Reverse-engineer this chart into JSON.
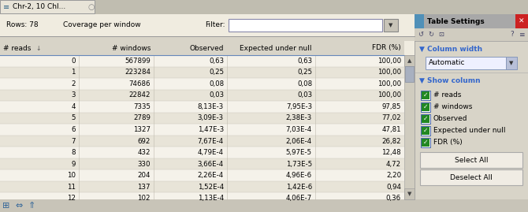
{
  "title_tab": "Chr-2, 10 Chl...",
  "rows_label": "Rows: 78",
  "coverage_label": "Coverage per window",
  "filter_label": "Filter:",
  "panel_title": "Table Settings",
  "column_width_label": "Column width",
  "dropdown_text": "Automatic",
  "show_column_label": "Show column",
  "checkboxes": [
    "# reads",
    "# windows",
    "Observed",
    "Expected under null",
    "FDR (%)"
  ],
  "btn1": "Select All",
  "btn2": "Deselect All",
  "headers": [
    "# reads",
    "# windows",
    "Observed",
    "Expected under null",
    "FDR (%)"
  ],
  "rows": [
    [
      "0",
      "567899",
      "0,63",
      "0,63",
      "100,00"
    ],
    [
      "1",
      "223284",
      "0,25",
      "0,25",
      "100,00"
    ],
    [
      "2",
      "74686",
      "0,08",
      "0,08",
      "100,00"
    ],
    [
      "3",
      "22842",
      "0,03",
      "0,03",
      "100,00"
    ],
    [
      "4",
      "7335",
      "8,13E-3",
      "7,95E-3",
      "97,85"
    ],
    [
      "5",
      "2789",
      "3,09E-3",
      "2,38E-3",
      "77,02"
    ],
    [
      "6",
      "1327",
      "1,47E-3",
      "7,03E-4",
      "47,81"
    ],
    [
      "7",
      "692",
      "7,67E-4",
      "2,06E-4",
      "26,82"
    ],
    [
      "8",
      "432",
      "4,79E-4",
      "5,97E-5",
      "12,48"
    ],
    [
      "9",
      "330",
      "3,66E-4",
      "1,73E-5",
      "4,72"
    ],
    [
      "10",
      "204",
      "2,26E-4",
      "4,96E-6",
      "2,20"
    ],
    [
      "11",
      "137",
      "1,52E-4",
      "1,42E-6",
      "0,94"
    ],
    [
      "12",
      "102",
      "1,13E-4",
      "4,06E-7",
      "0,36"
    ]
  ],
  "bg_main": "#e8e0d0",
  "bg_table_area": "#ffffff",
  "bg_toolbar": "#f0ece0",
  "bg_header_row": "#d8d0c0",
  "bg_row_even": "#f5f2ea",
  "bg_row_odd": "#e8e4d8",
  "bg_panel": "#d8d4c8",
  "panel_header_bg_left": "#5090b8",
  "panel_header_bg_right": "#a8b0c0",
  "tab_bg": "#d0ccc0",
  "tab_active_bg": "#e8e4d8",
  "scrollbar_bg": "#c8c4b8",
  "scrollbar_thumb": "#a0a8b8",
  "checkbox_green": "#22aa22",
  "btn_bg": "#f0ece4",
  "btn_border": "#aaaaaa",
  "blue_text": "#3366cc",
  "black_text": "#000000",
  "gray_text": "#666666",
  "white_text": "#ffffff",
  "border_color": "#999999",
  "font_size": 6.5,
  "header_font_size": 6.5
}
